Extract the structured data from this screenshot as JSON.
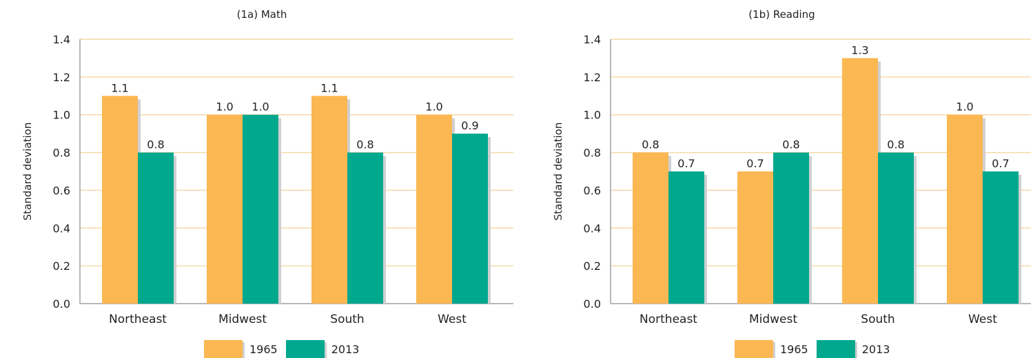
{
  "colors": {
    "1965": "#fbb752",
    "2013": "#00a88e",
    "grid": "#f6d9a6",
    "axis": "#9fa0a2",
    "shadow": "#cfd0d2"
  },
  "chart_data": [
    {
      "type": "bar",
      "title": "(1a) Math",
      "ylabel": "Standard deviation",
      "xlabel": "",
      "ylim": [
        0,
        1.4
      ],
      "yticks": [
        "0.0",
        "0.2",
        "0.4",
        "0.6",
        "0.8",
        "1.0",
        "1.2",
        "1.4"
      ],
      "grid": true,
      "legend": "bottom-center",
      "categories": [
        "Northeast",
        "Midwest",
        "South",
        "West"
      ],
      "series": [
        {
          "name": "1965",
          "values": [
            1.1,
            1.0,
            1.1,
            1.0
          ],
          "labels": [
            "1.1",
            "1.0",
            "1.1",
            "1.0"
          ]
        },
        {
          "name": "2013",
          "values": [
            0.8,
            1.0,
            0.8,
            0.9
          ],
          "labels": [
            "0.8",
            "1.0",
            "0.8",
            "0.9"
          ]
        }
      ]
    },
    {
      "type": "bar",
      "title": "(1b) Reading",
      "ylabel": "Standard deviation",
      "xlabel": "",
      "ylim": [
        0,
        1.4
      ],
      "yticks": [
        "0.0",
        "0.2",
        "0.4",
        "0.6",
        "0.8",
        "1.0",
        "1.2",
        "1.4"
      ],
      "grid": true,
      "legend": "bottom-center",
      "categories": [
        "Northeast",
        "Midwest",
        "South",
        "West"
      ],
      "series": [
        {
          "name": "1965",
          "values": [
            0.8,
            0.7,
            1.3,
            1.0
          ],
          "labels": [
            "0.8",
            "0.7",
            "1.3",
            "1.0"
          ]
        },
        {
          "name": "2013",
          "values": [
            0.7,
            0.8,
            0.8,
            0.7
          ],
          "labels": [
            "0.7",
            "0.8",
            "0.8",
            "0.7"
          ]
        }
      ]
    }
  ]
}
